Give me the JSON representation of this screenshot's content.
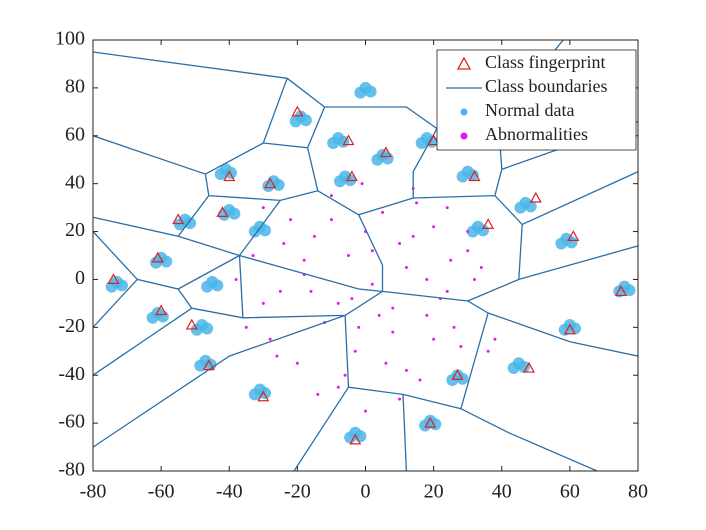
{
  "chart_data": {
    "type": "scatter",
    "legend": "upper right",
    "xlim": [
      -80,
      80
    ],
    "ylim": [
      -80,
      100
    ],
    "xticks": [
      -80,
      -60,
      -40,
      -20,
      0,
      20,
      40,
      60,
      80
    ],
    "yticks": [
      -80,
      -60,
      -40,
      -20,
      0,
      20,
      40,
      60,
      80,
      100
    ],
    "series": [
      {
        "name": "Class fingerprint",
        "type": "marker",
        "marker": "triangle",
        "color": "#e02020",
        "x": [
          -20,
          -5,
          6,
          -4,
          -28,
          -40,
          -55,
          -42,
          -61,
          -74,
          -60,
          -51,
          -46,
          -30,
          -3,
          19,
          27,
          48,
          60,
          75,
          61,
          50,
          36,
          32,
          20
        ],
        "y": [
          70,
          58,
          53,
          43,
          40,
          43,
          25,
          28,
          9,
          0,
          -13,
          -19,
          -36,
          -49,
          -67,
          -60,
          -40,
          -37,
          -21,
          -5,
          18,
          34,
          23,
          43,
          58
        ]
      },
      {
        "name": "Class boundaries",
        "type": "line",
        "color": "#2a6fa8",
        "x": [
          -80,
          -23,
          -12,
          12,
          21,
          39,
          58,
          null,
          -23,
          -30,
          null,
          -80,
          -47,
          -30,
          -17,
          -12,
          null,
          -17,
          -14,
          -2,
          14,
          14,
          21,
          null,
          39,
          40,
          80,
          null,
          -47,
          -46,
          -25,
          -14,
          null,
          -80,
          -55,
          -46,
          null,
          -55,
          -37,
          -25,
          null,
          -80,
          -67,
          -55,
          -37,
          null,
          -67,
          -80,
          null,
          -55,
          -51,
          -80,
          null,
          -51,
          -36,
          -37,
          null,
          -37,
          -2,
          5,
          null,
          -2,
          5,
          5,
          -6,
          null,
          -36,
          -6,
          null,
          -6,
          -40,
          -80,
          null,
          -6,
          -5,
          -21,
          null,
          -5,
          11,
          12,
          null,
          11,
          28,
          42,
          68,
          null,
          5,
          30,
          36,
          28,
          null,
          36,
          60,
          80,
          null,
          30,
          45,
          80,
          null,
          45,
          46,
          80,
          null,
          14,
          38,
          46,
          null,
          38,
          40
        ],
        "y": [
          95,
          84,
          72,
          72,
          63,
          66,
          100,
          null,
          84,
          57,
          null,
          60,
          44,
          57,
          55,
          72,
          null,
          55,
          37,
          27,
          34,
          45,
          63,
          null,
          66,
          46,
          66,
          null,
          44,
          35,
          33,
          37,
          null,
          26,
          18,
          35,
          null,
          18,
          10,
          33,
          null,
          20,
          0,
          -4,
          10,
          null,
          0,
          -20,
          null,
          -4,
          -12,
          -40,
          null,
          -12,
          -16,
          10,
          null,
          10,
          -4,
          -5,
          null,
          27,
          6,
          -5,
          -15,
          null,
          -16,
          -15,
          null,
          -15,
          -32,
          -70,
          null,
          -15,
          -45,
          -80,
          null,
          -45,
          -48,
          -80,
          null,
          -48,
          -54,
          -64,
          -80,
          null,
          -5,
          -9,
          -14,
          -54,
          null,
          -14,
          -26,
          -32,
          null,
          -9,
          0,
          14,
          null,
          0,
          23,
          45,
          null,
          34,
          35,
          23,
          null,
          35,
          46
        ]
      },
      {
        "name": "Normal data",
        "type": "dots",
        "color": "#4ab6e8",
        "x": [
          -20.5,
          -19,
          -17.5,
          -1.5,
          0,
          1.5,
          -9.5,
          -8,
          -6.5,
          3.5,
          5,
          6.5,
          16.5,
          18,
          19.5,
          -7.5,
          -6,
          -4.5,
          -42.5,
          -41,
          -39.5,
          -28.5,
          -27,
          -25.5,
          -41.5,
          -40,
          -38.5,
          -54.5,
          -53,
          -51.5,
          -32.5,
          -31,
          -29.5,
          -61.5,
          -60,
          -58.5,
          -74.5,
          -73,
          -71.5,
          -62.5,
          -61,
          -59.5,
          -46.5,
          -45,
          -43.5,
          -49.5,
          -48,
          -46.5,
          -48.5,
          -47,
          -45.5,
          -32.5,
          -31,
          -29.5,
          -4.5,
          -3,
          -1.5,
          17.5,
          19,
          20.5,
          25.5,
          27,
          28.5,
          43.5,
          45,
          46.5,
          58.5,
          60,
          61.5,
          74.5,
          76,
          77.5,
          57.5,
          59,
          60.5,
          45.5,
          47,
          48.5,
          31.5,
          33,
          34.5,
          28.5,
          30,
          31.5
        ],
        "y": [
          66,
          68,
          66.5,
          78,
          80,
          78.5,
          57,
          59,
          57.5,
          50,
          52,
          50.5,
          57,
          59,
          57.5,
          41,
          43,
          41.5,
          44,
          46,
          44.5,
          39,
          41,
          39.5,
          27,
          29,
          27.5,
          23,
          25,
          23.5,
          20,
          22,
          20.5,
          7,
          9,
          7.5,
          -3,
          -1,
          -2.5,
          -16,
          -14,
          -15.5,
          -3,
          -1,
          -2.5,
          -21,
          -19,
          -20.5,
          -36,
          -34,
          -35.5,
          -48,
          -46,
          -47.5,
          -66,
          -64,
          -65.5,
          -61,
          -59,
          -60.5,
          -42,
          -40,
          -41.5,
          -37,
          -35,
          -36.5,
          -21,
          -19,
          -20.5,
          -5,
          -3,
          -4.5,
          15,
          17,
          15.5,
          30,
          32,
          30.5,
          20,
          22,
          20.5,
          43,
          45,
          43.5
        ]
      },
      {
        "name": "Abnormalities",
        "type": "dots",
        "color": "#e619e6",
        "x": [
          -30,
          -22,
          -15,
          -10,
          -5,
          0,
          5,
          10,
          15,
          20,
          25,
          30,
          -25,
          -18,
          -8,
          2,
          12,
          22,
          32,
          -35,
          -28,
          -12,
          -3,
          8,
          18,
          28,
          -20,
          -6,
          6,
          16,
          26,
          36,
          -33,
          -16,
          -1,
          14,
          24,
          -24,
          -10,
          4,
          20,
          34,
          -14,
          0,
          10,
          -26,
          -8,
          18,
          30,
          -4,
          8,
          24,
          -18,
          2,
          14,
          -30,
          12,
          38,
          -38,
          -2
        ],
        "y": [
          30,
          25,
          18,
          35,
          10,
          20,
          28,
          15,
          32,
          22,
          8,
          12,
          -5,
          2,
          -10,
          -2,
          5,
          -8,
          0,
          -20,
          -25,
          -18,
          -30,
          -22,
          -15,
          -28,
          -35,
          -40,
          -35,
          -42,
          -20,
          -30,
          10,
          -5,
          40,
          38,
          30,
          15,
          25,
          -15,
          -25,
          5,
          -48,
          -55,
          -50,
          -32,
          -45,
          0,
          20,
          -8,
          -12,
          -5,
          8,
          12,
          18,
          -10,
          -38,
          -25,
          0,
          -20
        ]
      }
    ]
  }
}
